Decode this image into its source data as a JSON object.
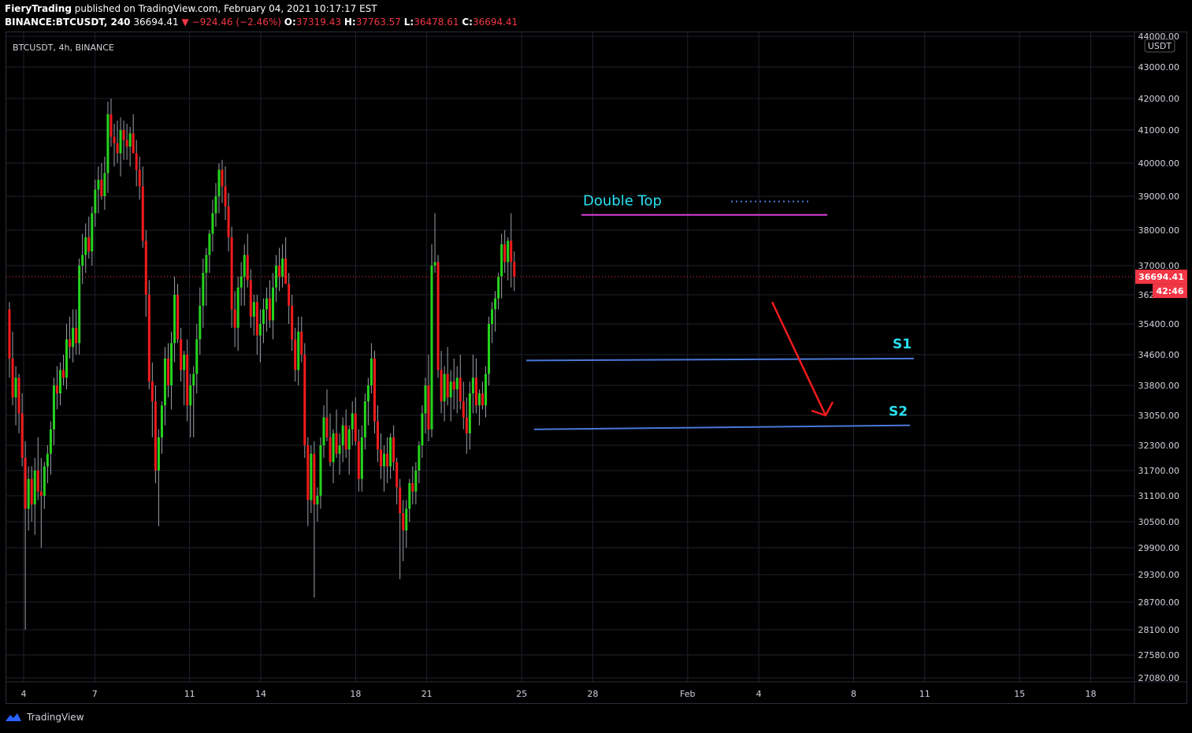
{
  "header": {
    "author": "FieryTrading",
    "published": " published on TradingView.com, February 04, 2021 10:17:17 EST",
    "symbol_line": "BINANCE:BTCUSDT, 240",
    "last": "36694.41",
    "change": "▼ −924.46 (−2.46%)",
    "o_label": "O:",
    "o": "37319.43",
    "h_label": "H:",
    "h": "37763.57",
    "l_label": "L:",
    "l": "36478.61",
    "c_label": "C:",
    "c": "36694.41"
  },
  "chart_label": "BTCUSDT, 4h, BINANCE",
  "footer": {
    "brand": "TradingView",
    "logo_icon": "tradingview-logo-icon"
  },
  "colors": {
    "up": "#26d31e",
    "down": "#f21b1b",
    "grid": "#1e222d",
    "annotation_cyan": "#29e0f0",
    "double_top_line": "#e040e0",
    "support_line": "#4a78d8",
    "arrow": "#f21b1b",
    "price_badge": "#f23645"
  },
  "chart_data": {
    "type": "candlestick",
    "title": "BTCUSDT, 4h, BINANCE",
    "currency": "USDT",
    "y_ticks": [
      "44000.00",
      "43000.00",
      "42000.00",
      "41000.00",
      "40000.00",
      "39000.00",
      "38000.00",
      "37000.00",
      "36200.00",
      "35400.00",
      "34600.00",
      "33800.00",
      "33050.00",
      "32300.00",
      "31700.00",
      "31100.00",
      "30500.00",
      "29900.00",
      "29300.00",
      "28700.00",
      "28100.00",
      "27580.00",
      "27080.00"
    ],
    "y_tick_values": [
      44000,
      43000,
      42000,
      41000,
      40000,
      39000,
      38000,
      37000,
      36200,
      35400,
      34600,
      33800,
      33050,
      32300,
      31700,
      31100,
      30500,
      29900,
      29300,
      28700,
      28100,
      27580,
      27080
    ],
    "x_ticks": [
      "4",
      "7",
      "11",
      "14",
      "18",
      "21",
      "25",
      "28",
      "Feb",
      "4",
      "8",
      "11",
      "15",
      "18"
    ],
    "x_tick_days": [
      0,
      3,
      7,
      10,
      14,
      17,
      21,
      24,
      28,
      31,
      35,
      38,
      42,
      45
    ],
    "current_price": "36694.41",
    "countdown": "42:46",
    "annotations": [
      {
        "text": "Double Top"
      },
      {
        "text": "S1",
        "price": 34500
      },
      {
        "text": "S2",
        "price": 32750
      }
    ],
    "double_top_price": 38450,
    "candles": [
      [
        35800,
        36000,
        34000,
        34500
      ],
      [
        34500,
        35200,
        33300,
        33500
      ],
      [
        33500,
        34300,
        32800,
        34000
      ],
      [
        34000,
        34100,
        32600,
        33100
      ],
      [
        33100,
        33600,
        31800,
        32000
      ],
      [
        32000,
        32400,
        28100,
        30800
      ],
      [
        30800,
        31800,
        30300,
        31500
      ],
      [
        31500,
        31800,
        30500,
        30900
      ],
      [
        30900,
        32000,
        30200,
        31700
      ],
      [
        31700,
        32500,
        31000,
        31200
      ],
      [
        31200,
        32000,
        29900,
        31100
      ],
      [
        31100,
        31900,
        30800,
        31800
      ],
      [
        31800,
        32300,
        31400,
        32100
      ],
      [
        32100,
        32900,
        31600,
        32700
      ],
      [
        32700,
        34000,
        32300,
        33800
      ],
      [
        33800,
        34300,
        33200,
        33600
      ],
      [
        33600,
        34400,
        33300,
        34200
      ],
      [
        34200,
        34600,
        33800,
        34000
      ],
      [
        34000,
        35400,
        33700,
        35000
      ],
      [
        35000,
        35600,
        34500,
        34800
      ],
      [
        34800,
        35800,
        34400,
        35300
      ],
      [
        35300,
        35800,
        34600,
        34900
      ],
      [
        34900,
        37200,
        34600,
        37000
      ],
      [
        37000,
        37900,
        36500,
        37300
      ],
      [
        37300,
        38200,
        36800,
        37800
      ],
      [
        37800,
        38400,
        37200,
        37400
      ],
      [
        37400,
        38700,
        37000,
        38500
      ],
      [
        38500,
        39500,
        38100,
        39200
      ],
      [
        39200,
        39900,
        38500,
        39500
      ],
      [
        39500,
        40000,
        38900,
        39000
      ],
      [
        39000,
        40200,
        38600,
        39700
      ],
      [
        39700,
        41900,
        39100,
        41500
      ],
      [
        41500,
        42000,
        40500,
        40800
      ],
      [
        40800,
        41200,
        39900,
        40600
      ],
      [
        40600,
        41300,
        40000,
        40300
      ],
      [
        40300,
        41400,
        39600,
        41000
      ],
      [
        41000,
        41300,
        40100,
        40700
      ],
      [
        40700,
        41200,
        40100,
        40500
      ],
      [
        40500,
        41100,
        39900,
        40900
      ],
      [
        40900,
        41500,
        40400,
        40300
      ],
      [
        40300,
        40700,
        39300,
        39800
      ],
      [
        39800,
        40200,
        38900,
        39300
      ],
      [
        39300,
        39900,
        37500,
        37700
      ],
      [
        37700,
        38000,
        35600,
        36200
      ],
      [
        36200,
        36600,
        33700,
        33900
      ],
      [
        33900,
        34400,
        32500,
        33400
      ],
      [
        33400,
        33800,
        31400,
        31700
      ],
      [
        31700,
        32700,
        30400,
        32500
      ],
      [
        32500,
        33400,
        32100,
        33300
      ],
      [
        33300,
        34800,
        32800,
        34500
      ],
      [
        34500,
        34900,
        33500,
        33800
      ],
      [
        33800,
        35200,
        33200,
        34900
      ],
      [
        34900,
        36700,
        34400,
        36200
      ],
      [
        36200,
        36500,
        34900,
        35000
      ],
      [
        35000,
        35300,
        33900,
        34200
      ],
      [
        34200,
        34700,
        33300,
        34600
      ],
      [
        34600,
        35000,
        32900,
        33300
      ],
      [
        33300,
        34100,
        32500,
        33800
      ],
      [
        33800,
        34300,
        32500,
        34100
      ],
      [
        34100,
        35400,
        33600,
        35000
      ],
      [
        35000,
        36400,
        34600,
        35900
      ],
      [
        35900,
        37200,
        35300,
        36800
      ],
      [
        36800,
        37500,
        35900,
        37300
      ],
      [
        37300,
        38000,
        36800,
        37900
      ],
      [
        37900,
        38900,
        37400,
        38500
      ],
      [
        38500,
        39400,
        38100,
        39000
      ],
      [
        39000,
        40000,
        38500,
        39800
      ],
      [
        39800,
        40100,
        38800,
        39300
      ],
      [
        39300,
        39900,
        38300,
        38700
      ],
      [
        38700,
        39100,
        37400,
        37800
      ],
      [
        37800,
        38100,
        35300,
        35800
      ],
      [
        35800,
        36300,
        34800,
        35300
      ],
      [
        35300,
        36700,
        34700,
        36400
      ],
      [
        36400,
        37100,
        35900,
        36700
      ],
      [
        36700,
        37600,
        35900,
        37300
      ],
      [
        37300,
        37900,
        36400,
        36600
      ],
      [
        36600,
        36900,
        35300,
        35600
      ],
      [
        35600,
        36200,
        35100,
        36000
      ],
      [
        36000,
        36200,
        34600,
        35100
      ],
      [
        35100,
        35800,
        34400,
        35400
      ],
      [
        35400,
        36100,
        34900,
        35800
      ],
      [
        35800,
        36400,
        35200,
        36100
      ],
      [
        36100,
        36600,
        35300,
        35500
      ],
      [
        35500,
        36800,
        35000,
        36400
      ],
      [
        36400,
        37300,
        36000,
        37000
      ],
      [
        37000,
        37500,
        36300,
        36700
      ],
      [
        36700,
        37600,
        36400,
        37200
      ],
      [
        37200,
        37800,
        36500,
        36500
      ],
      [
        36500,
        36800,
        35400,
        35900
      ],
      [
        35900,
        36200,
        34700,
        35000
      ],
      [
        35000,
        35300,
        33900,
        34200
      ],
      [
        34200,
        35600,
        33800,
        35200
      ],
      [
        35200,
        35600,
        34400,
        34600
      ],
      [
        34600,
        34900,
        32000,
        32300
      ],
      [
        32300,
        32500,
        30400,
        31000
      ],
      [
        31000,
        32300,
        30700,
        32100
      ],
      [
        32100,
        32400,
        28800,
        30900
      ],
      [
        30900,
        31300,
        30500,
        31100
      ],
      [
        31100,
        32500,
        30800,
        32300
      ],
      [
        32300,
        33300,
        32000,
        33000
      ],
      [
        33000,
        33700,
        32400,
        32500
      ],
      [
        32500,
        33100,
        31800,
        31900
      ],
      [
        31900,
        32700,
        31400,
        32600
      ],
      [
        32600,
        33200,
        32000,
        32100
      ],
      [
        32100,
        32600,
        31600,
        32300
      ],
      [
        32300,
        33000,
        31900,
        32800
      ],
      [
        32800,
        33200,
        32000,
        32200
      ],
      [
        32200,
        32800,
        31600,
        32700
      ],
      [
        32700,
        33400,
        32300,
        33100
      ],
      [
        33100,
        33500,
        32300,
        32400
      ],
      [
        32400,
        32700,
        31200,
        31500
      ],
      [
        31500,
        32800,
        31200,
        32500
      ],
      [
        32500,
        33600,
        32200,
        33400
      ],
      [
        33400,
        34000,
        32800,
        33800
      ],
      [
        33800,
        34900,
        33600,
        34500
      ],
      [
        34500,
        34700,
        32600,
        32900
      ],
      [
        32900,
        33300,
        31900,
        32200
      ],
      [
        32200,
        32600,
        31500,
        31800
      ],
      [
        31800,
        32300,
        31200,
        32100
      ],
      [
        32100,
        32500,
        31400,
        31800
      ],
      [
        31800,
        32600,
        31500,
        32500
      ],
      [
        32500,
        32800,
        31700,
        31900
      ],
      [
        31900,
        32000,
        30900,
        31300
      ],
      [
        31300,
        31500,
        29200,
        30700
      ],
      [
        30700,
        31000,
        29600,
        30300
      ],
      [
        30300,
        31000,
        29900,
        30800
      ],
      [
        30800,
        31500,
        30500,
        31400
      ],
      [
        31400,
        31800,
        30900,
        31200
      ],
      [
        31200,
        31900,
        30900,
        31700
      ],
      [
        31700,
        32400,
        31400,
        32300
      ],
      [
        32300,
        33300,
        32000,
        33100
      ],
      [
        33100,
        34000,
        32600,
        33800
      ],
      [
        33800,
        34600,
        32400,
        32700
      ],
      [
        32700,
        37600,
        32500,
        37000
      ],
      [
        37000,
        38500,
        36800,
        37100
      ],
      [
        37100,
        37300,
        34000,
        34200
      ],
      [
        34200,
        34700,
        33100,
        33400
      ],
      [
        33400,
        34300,
        32900,
        34100
      ],
      [
        34100,
        34800,
        33300,
        33500
      ],
      [
        33500,
        34200,
        32900,
        33900
      ],
      [
        33900,
        34500,
        33200,
        33700
      ],
      [
        33700,
        34300,
        33100,
        34000
      ],
      [
        34000,
        34600,
        33200,
        33400
      ],
      [
        33400,
        33900,
        32700,
        33000
      ],
      [
        33000,
        33500,
        32100,
        32600
      ],
      [
        32600,
        33900,
        32200,
        33600
      ],
      [
        33600,
        34600,
        33100,
        34000
      ],
      [
        34000,
        34500,
        33100,
        33300
      ],
      [
        33300,
        33700,
        32800,
        33600
      ],
      [
        33600,
        33900,
        33200,
        33300
      ],
      [
        33300,
        34300,
        33000,
        34100
      ],
      [
        34100,
        35600,
        33800,
        35400
      ],
      [
        35400,
        36000,
        34900,
        35800
      ],
      [
        35800,
        36300,
        35200,
        36100
      ],
      [
        36100,
        36800,
        35800,
        36700
      ],
      [
        36700,
        37900,
        36100,
        37600
      ],
      [
        37600,
        38000,
        36800,
        37100
      ],
      [
        37100,
        37800,
        36600,
        37700
      ],
      [
        37700,
        38500,
        36400,
        37100
      ],
      [
        37100,
        37400,
        36300,
        36694
      ]
    ]
  }
}
